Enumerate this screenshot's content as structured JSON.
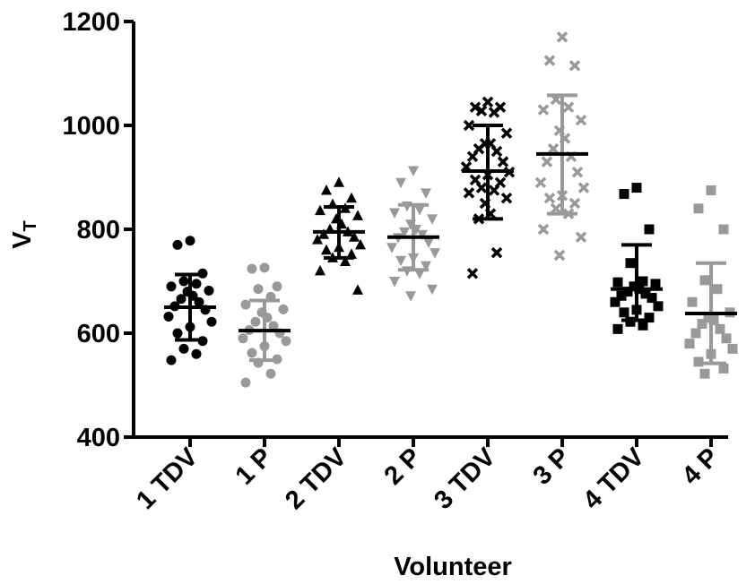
{
  "chart_data": {
    "type": "scatter",
    "title": "",
    "xlabel": "Volunteer",
    "ylabel": "V",
    "ylabel_subscript": "T",
    "ylim": [
      400,
      1200
    ],
    "yticks": [
      "400",
      "600",
      "800",
      "1000",
      "1200"
    ],
    "categories": [
      "1 TDV",
      "1 P",
      "2 TDV",
      "2 P",
      "3 TDV",
      "3 P",
      "4 TDV",
      "4 P"
    ],
    "series": [
      {
        "category": "1 TDV",
        "color": "#000000",
        "marker": "circle",
        "mean": 650,
        "sd_low": 587,
        "sd_high": 713,
        "values": [
          778,
          770,
          715,
          700,
          695,
          690,
          682,
          680,
          672,
          666,
          660,
          652,
          645,
          632,
          622,
          612,
          600,
          585,
          570,
          560,
          548
        ]
      },
      {
        "category": "1 P",
        "color": "#999999",
        "marker": "circle",
        "mean": 605,
        "sd_low": 548,
        "sd_high": 663,
        "values": [
          726,
          724,
          690,
          685,
          670,
          655,
          646,
          640,
          630,
          622,
          614,
          606,
          600,
          590,
          585,
          575,
          562,
          550,
          543,
          522,
          505
        ]
      },
      {
        "category": "2 TDV",
        "color": "#000000",
        "marker": "triangle-up",
        "mean": 795,
        "sd_low": 745,
        "sd_high": 843,
        "values": [
          890,
          875,
          860,
          848,
          840,
          836,
          826,
          820,
          810,
          800,
          795,
          790,
          785,
          780,
          770,
          765,
          760,
          752,
          745,
          738,
          720,
          683
        ]
      },
      {
        "category": "2 P",
        "color": "#999999",
        "marker": "triangle-down",
        "mean": 785,
        "sd_low": 722,
        "sd_high": 847,
        "values": [
          913,
          890,
          870,
          845,
          838,
          832,
          820,
          810,
          800,
          795,
          790,
          784,
          775,
          765,
          755,
          745,
          740,
          730,
          720,
          715,
          700,
          685,
          672
        ]
      },
      {
        "category": "3 TDV",
        "color": "#000000",
        "marker": "x",
        "mean": 912,
        "sd_low": 820,
        "sd_high": 1000,
        "values": [
          1045,
          1035,
          1035,
          1028,
          1025,
          1000,
          985,
          965,
          965,
          955,
          950,
          940,
          930,
          920,
          910,
          905,
          895,
          890,
          880,
          875,
          870,
          860,
          850,
          830,
          820,
          755,
          715
        ]
      },
      {
        "category": "3 P",
        "color": "#999999",
        "marker": "x",
        "mean": 945,
        "sd_low": 830,
        "sd_high": 1058,
        "values": [
          1170,
          1125,
          1115,
          1050,
          1035,
          1030,
          1010,
          990,
          975,
          955,
          940,
          930,
          910,
          890,
          880,
          865,
          860,
          850,
          840,
          830,
          800,
          785,
          750
        ]
      },
      {
        "category": "4 TDV",
        "color": "#000000",
        "marker": "square",
        "mean": 685,
        "sd_low": 625,
        "sd_high": 770,
        "values": [
          880,
          868,
          800,
          735,
          700,
          698,
          695,
          690,
          685,
          680,
          676,
          672,
          668,
          660,
          652,
          645,
          640,
          630,
          622,
          615,
          608
        ]
      },
      {
        "category": "4 P",
        "color": "#999999",
        "marker": "square",
        "mean": 638,
        "sd_low": 542,
        "sd_high": 735,
        "values": [
          875,
          840,
          800,
          702,
          685,
          660,
          640,
          630,
          625,
          618,
          608,
          600,
          590,
          580,
          570,
          560,
          545,
          532,
          522
        ]
      }
    ]
  }
}
